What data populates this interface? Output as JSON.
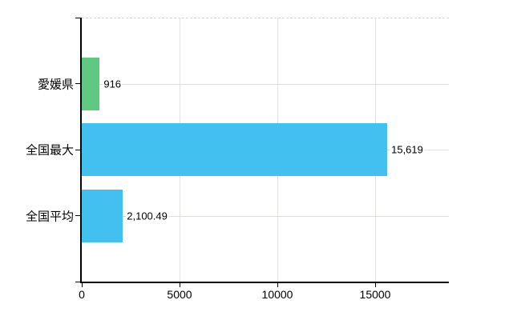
{
  "chart_data": {
    "type": "bar",
    "orientation": "horizontal",
    "title": "",
    "xlabel": "",
    "ylabel": "",
    "categories": [
      "愛媛県",
      "全国最大",
      "全国平均"
    ],
    "values": [
      916,
      15619,
      2100.49
    ],
    "value_labels": [
      "916",
      "15,619",
      "2,100.49"
    ],
    "bar_colors": [
      "#60C981",
      "#42C1F0",
      "#42C1F0"
    ],
    "x_ticks": [
      0,
      5000,
      10000,
      15000
    ],
    "x_tick_labels": [
      "0",
      "5000",
      "10000",
      "15000"
    ],
    "xlim": [
      0,
      18770
    ],
    "grid": true,
    "legend": false,
    "colors": {
      "axis": "#000000",
      "gridline": "#dde1d9",
      "gridline_dashed": "#d2d6cf",
      "text": "#000000",
      "background": "#ffffff"
    }
  }
}
